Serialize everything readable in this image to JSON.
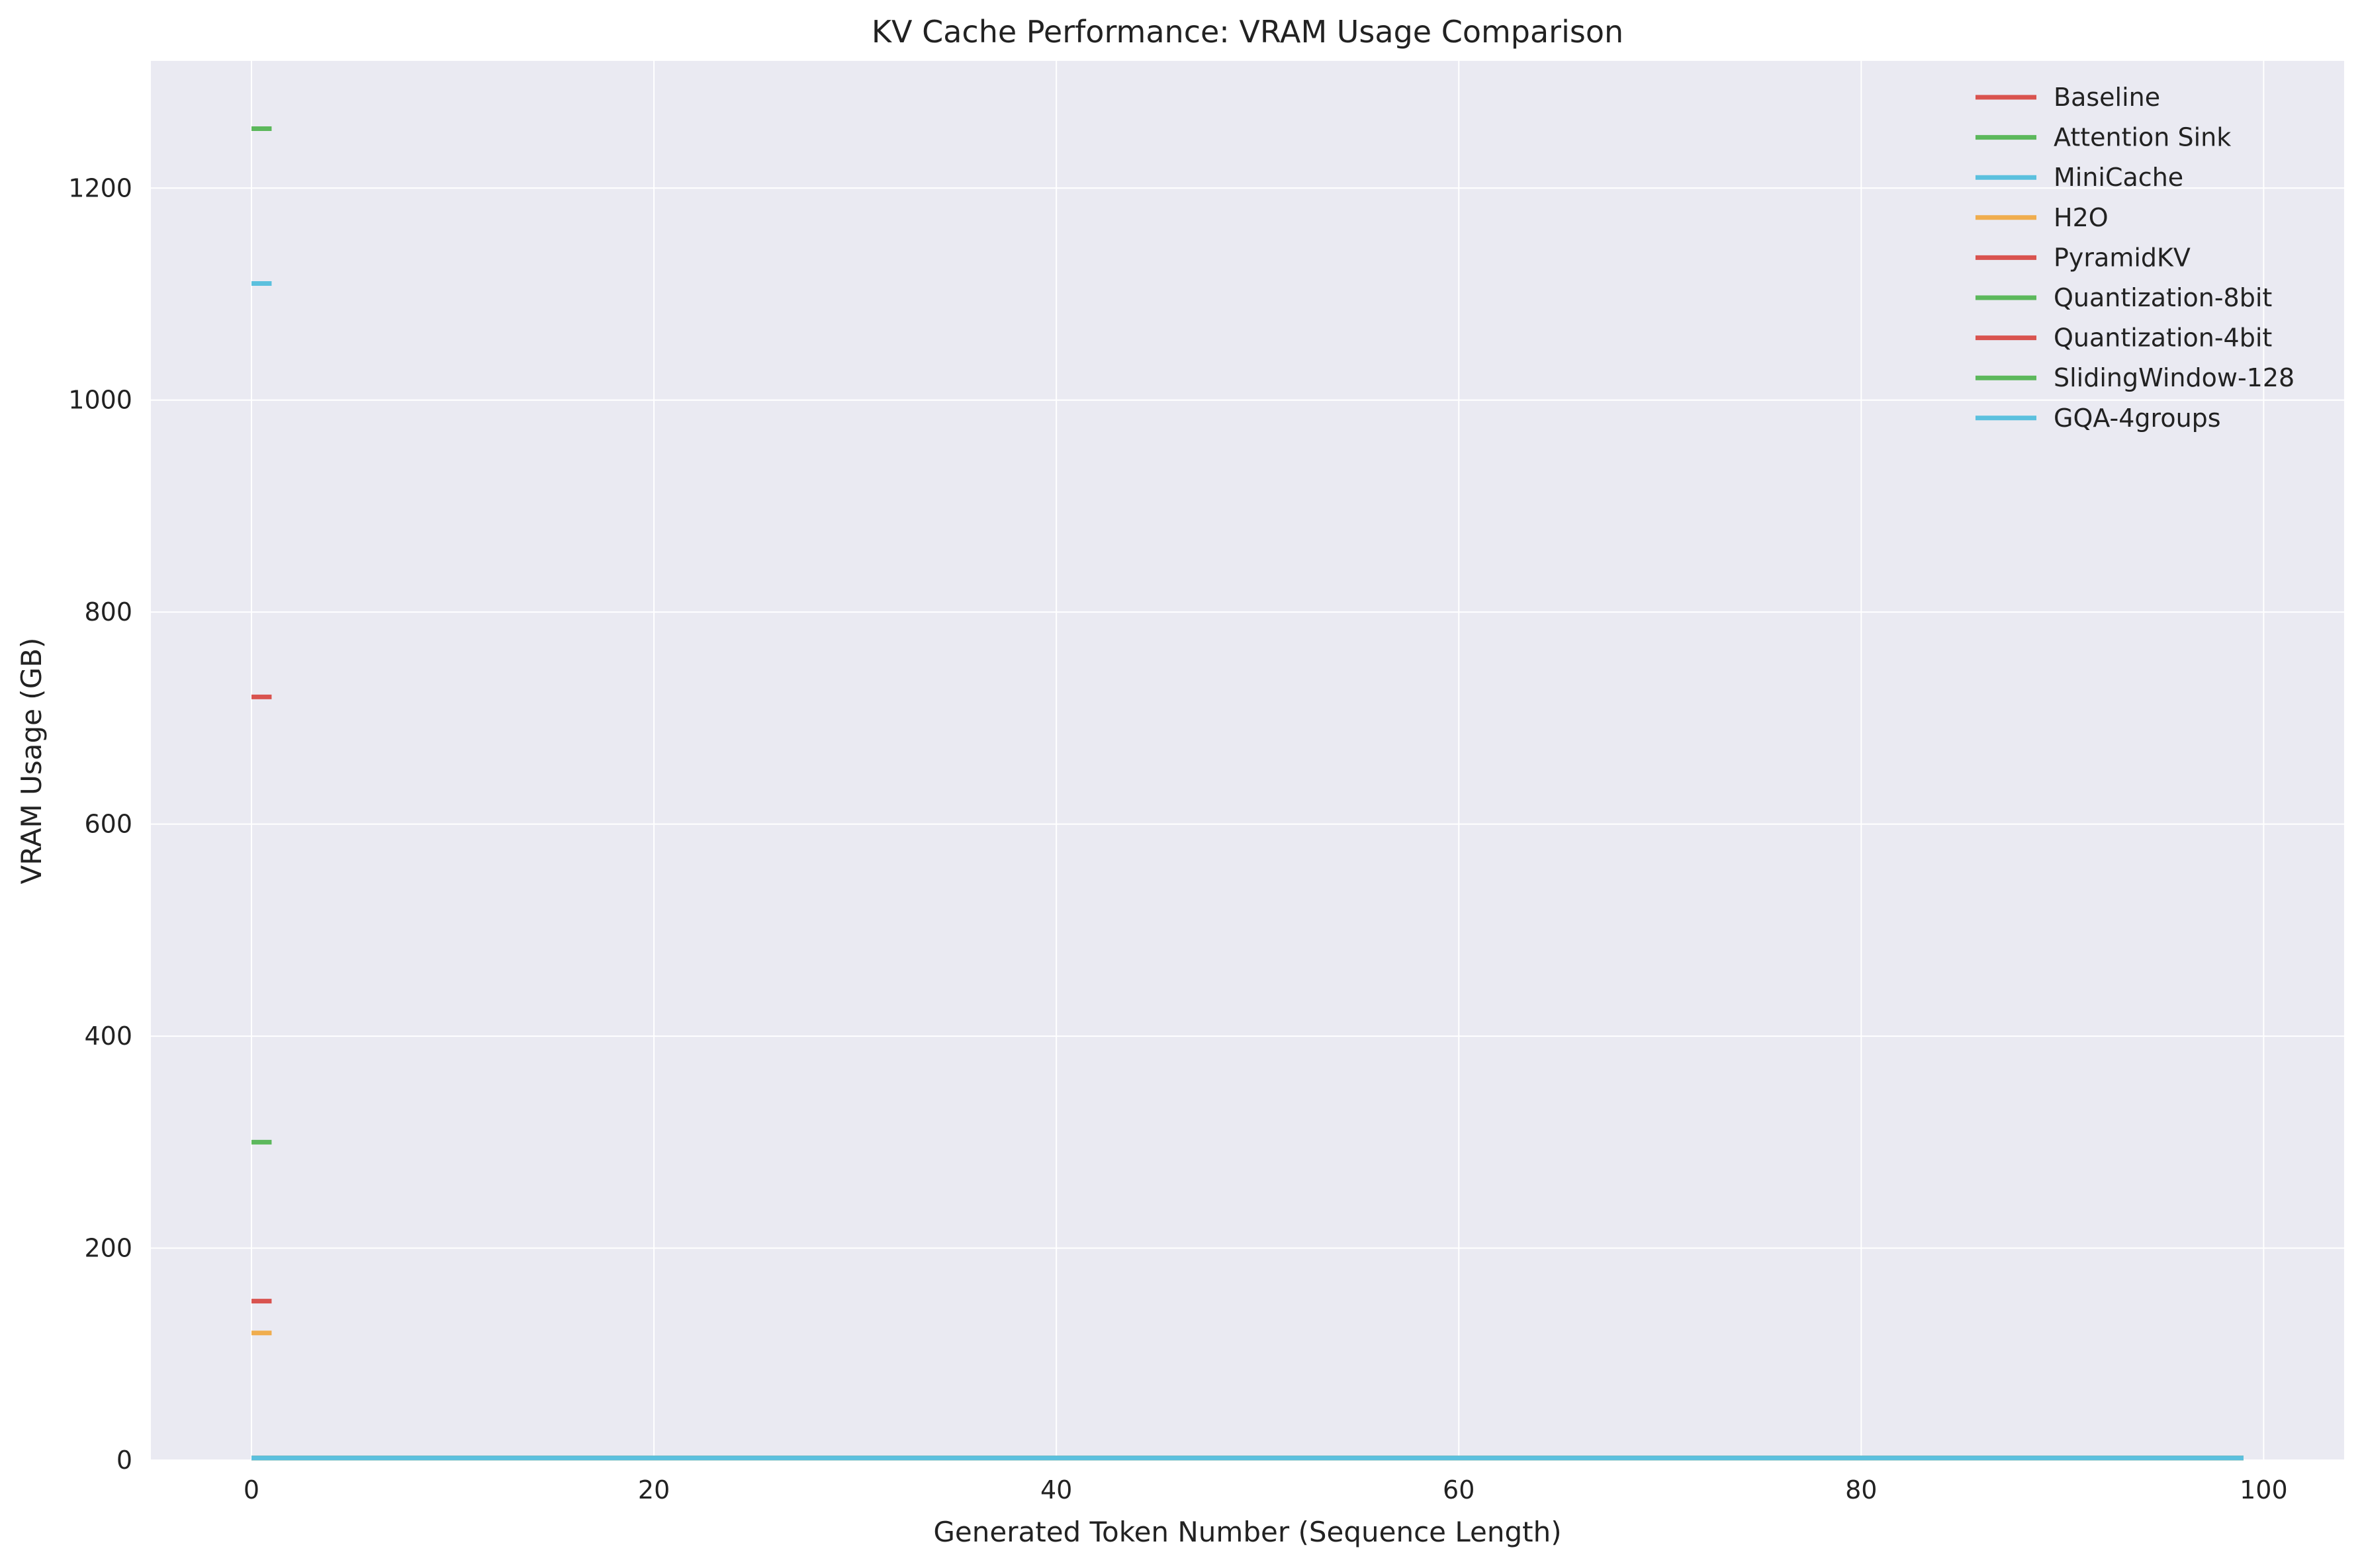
{
  "chart_data": {
    "type": "line",
    "title": "KV Cache Performance: VRAM Usage Comparison",
    "xlabel": "Generated Token Number (Sequence Length)",
    "ylabel": "VRAM Usage (GB)",
    "xlim": [
      -5,
      104
    ],
    "ylim": [
      0,
      1320
    ],
    "xticks": [
      0,
      20,
      40,
      60,
      80,
      100
    ],
    "yticks": [
      0,
      200,
      400,
      600,
      800,
      1000,
      1200
    ],
    "grid": true,
    "legend_position": "top-right",
    "series": [
      {
        "name": "Baseline",
        "color": "#d9534f",
        "x": [
          0,
          1
        ],
        "y": [
          150,
          150
        ]
      },
      {
        "name": "Attention Sink",
        "color": "#5cb85c",
        "x": [
          0,
          1
        ],
        "y": [
          1256,
          1256
        ]
      },
      {
        "name": "MiniCache",
        "color": "#5bc0de",
        "x": [
          0,
          1
        ],
        "y": [
          1110,
          1110
        ]
      },
      {
        "name": "H2O",
        "color": "#f0ad4e",
        "x": [
          0,
          1
        ],
        "y": [
          120,
          120
        ]
      },
      {
        "name": "PyramidKV",
        "color": "#d9534f",
        "x": [
          0,
          1
        ],
        "y": [
          720,
          720
        ]
      },
      {
        "name": "Quantization-8bit",
        "color": "#5cb85c",
        "x": [
          0,
          1
        ],
        "y": [
          300,
          300
        ]
      },
      {
        "name": "Quantization-4bit",
        "color": "#d9534f",
        "x": [
          0,
          99
        ],
        "y": [
          2,
          2
        ]
      },
      {
        "name": "SlidingWindow-128",
        "color": "#5cb85c",
        "x": [
          0,
          99
        ],
        "y": [
          2,
          2
        ]
      },
      {
        "name": "GQA-4groups",
        "color": "#5bc0de",
        "x": [
          0,
          99
        ],
        "y": [
          2,
          2
        ]
      }
    ]
  }
}
